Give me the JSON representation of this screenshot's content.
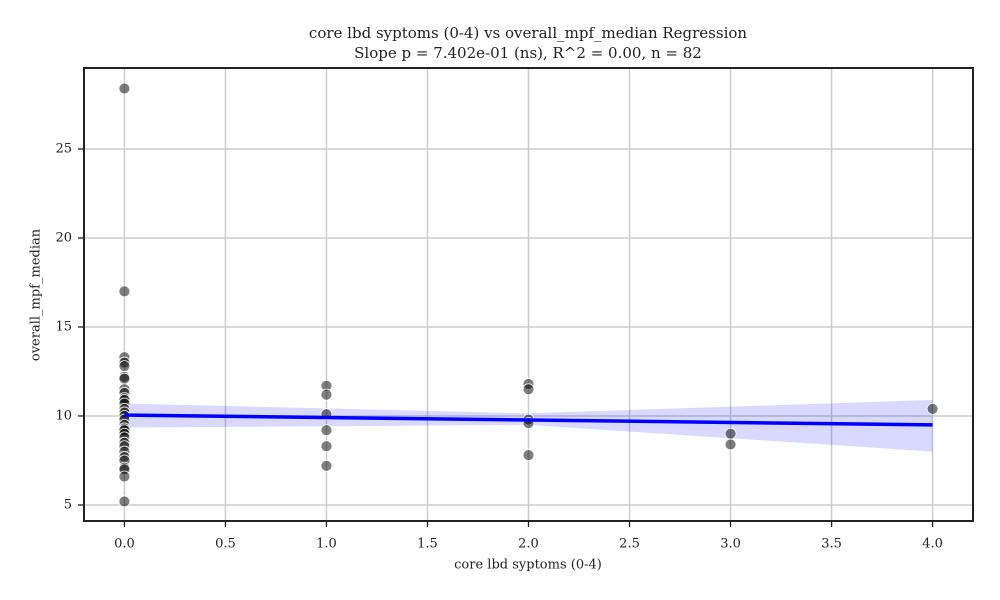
{
  "chart_data": {
    "type": "scatter",
    "title": "core lbd syptoms (0-4) vs overall_mpf_median Regression",
    "subtitle": "Slope p = 7.402e-01 (ns), R^2 = 0.00, n = 82",
    "x_label": "core lbd syptoms (0-4)",
    "y_label": "overall_mpf_median",
    "xlim": [
      -0.2,
      4.2
    ],
    "ylim": [
      4.1,
      29.55
    ],
    "xticks": [
      {
        "value": 0,
        "label": "0.0"
      },
      {
        "value": 0.5,
        "label": "0.5"
      },
      {
        "value": 1,
        "label": "1.0"
      },
      {
        "value": 1.5,
        "label": "1.5"
      },
      {
        "value": 2,
        "label": "2.0"
      },
      {
        "value": 2.5,
        "label": "2.5"
      },
      {
        "value": 3,
        "label": "3.0"
      },
      {
        "value": 3.5,
        "label": "3.5"
      },
      {
        "value": 4,
        "label": "4.0"
      }
    ],
    "yticks": [
      5,
      10,
      15,
      20,
      25
    ],
    "grid": true,
    "series": [
      {
        "color": "#000000",
        "x": [
          0,
          0,
          0,
          0,
          0,
          0,
          0,
          0,
          0,
          0,
          0,
          0,
          0,
          0,
          0,
          0,
          0,
          0,
          0,
          0,
          0,
          0,
          0,
          0,
          0,
          0,
          0,
          0,
          0,
          0,
          1,
          1,
          1,
          1,
          1,
          1,
          2,
          2,
          2,
          2,
          2,
          3,
          3,
          4
        ],
        "values": [
          28.4,
          17.0,
          13.3,
          13.0,
          12.8,
          12.2,
          12.1,
          11.5,
          11.3,
          11.0,
          10.9,
          10.7,
          10.4,
          10.2,
          10.0,
          9.8,
          9.5,
          9.3,
          9.2,
          9.0,
          8.8,
          8.5,
          8.3,
          8.0,
          7.7,
          7.5,
          7.1,
          7.0,
          6.6,
          5.2,
          11.7,
          11.2,
          10.1,
          9.2,
          8.3,
          7.2,
          11.8,
          11.5,
          9.8,
          9.6,
          7.8,
          9.0,
          8.4,
          10.4
        ]
      }
    ],
    "regression": {
      "color": "#0000ff",
      "x": [
        0,
        4
      ],
      "values": [
        10.05,
        9.5
      ],
      "band_x": [
        0,
        2,
        4
      ],
      "band_upper": [
        10.7,
        10.15,
        10.9
      ],
      "band_lower": [
        9.35,
        9.5,
        8.0
      ]
    }
  }
}
